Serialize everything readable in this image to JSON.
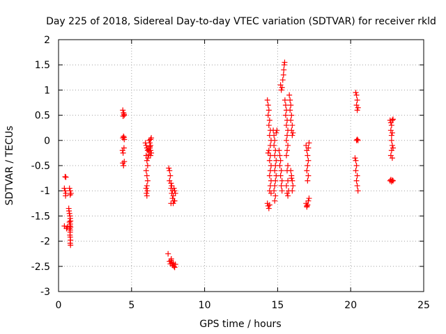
{
  "chart_data": {
    "type": "scatter",
    "title": "Day 225 of 2018, Sidereal Day-to-day VTEC variation (SDTVAR) for receiver rkld",
    "xlabel": "GPS time / hours",
    "ylabel": "SDTVAR / TECUs",
    "xlim": [
      0,
      25
    ],
    "ylim": [
      -3,
      2
    ],
    "x_ticks": [
      0,
      5,
      10,
      15,
      20,
      25
    ],
    "x_tick_labels": [
      "0",
      "5",
      "10",
      "15",
      "20",
      "25"
    ],
    "y_ticks": [
      -3,
      -2.5,
      -2,
      -1.5,
      -1,
      -0.5,
      0,
      0.5,
      1,
      1.5,
      2
    ],
    "y_tick_labels": [
      "-3",
      "-2.5",
      "-2",
      "-1.5",
      "-1",
      "-0.5",
      "0",
      "0.5",
      "1",
      "1.5",
      "2"
    ],
    "grid": true,
    "marker": "+",
    "marker_color": "#ff0000",
    "series": [
      {
        "name": "SDTVAR",
        "points": [
          [
            0.45,
            -0.72
          ],
          [
            0.5,
            -0.73
          ],
          [
            0.4,
            -0.95
          ],
          [
            0.45,
            -1.0
          ],
          [
            0.5,
            -1.05
          ],
          [
            0.48,
            -1.1
          ],
          [
            0.4,
            -1.7
          ],
          [
            0.55,
            -1.75
          ],
          [
            0.6,
            -1.72
          ],
          [
            0.75,
            -0.95
          ],
          [
            0.8,
            -1.0
          ],
          [
            0.85,
            -1.05
          ],
          [
            0.8,
            -1.08
          ],
          [
            0.7,
            -1.35
          ],
          [
            0.72,
            -1.4
          ],
          [
            0.75,
            -1.45
          ],
          [
            0.78,
            -1.5
          ],
          [
            0.8,
            -1.55
          ],
          [
            0.82,
            -1.6
          ],
          [
            0.75,
            -1.62
          ],
          [
            0.8,
            -1.66
          ],
          [
            0.78,
            -1.7
          ],
          [
            0.82,
            -1.72
          ],
          [
            0.76,
            -1.75
          ],
          [
            0.8,
            -1.78
          ],
          [
            0.8,
            -1.82
          ],
          [
            0.78,
            -1.88
          ],
          [
            0.8,
            -1.92
          ],
          [
            0.82,
            -1.98
          ],
          [
            0.8,
            -2.04
          ],
          [
            0.82,
            -2.08
          ],
          [
            4.4,
            0.6
          ],
          [
            4.45,
            0.55
          ],
          [
            4.5,
            0.5
          ],
          [
            4.42,
            0.48
          ],
          [
            4.48,
            0.52
          ],
          [
            4.4,
            0.05
          ],
          [
            4.45,
            0.08
          ],
          [
            4.5,
            0.02
          ],
          [
            4.48,
            0.06
          ],
          [
            4.38,
            -0.2
          ],
          [
            4.42,
            -0.25
          ],
          [
            4.48,
            -0.15
          ],
          [
            4.4,
            -0.45
          ],
          [
            4.45,
            -0.5
          ],
          [
            4.5,
            -0.42
          ],
          [
            5.95,
            -0.05
          ],
          [
            6.0,
            -0.1
          ],
          [
            6.05,
            -0.15
          ],
          [
            6.1,
            -0.2
          ],
          [
            6.0,
            -0.3
          ],
          [
            6.05,
            -0.4
          ],
          [
            6.1,
            -0.5
          ],
          [
            6.0,
            -0.6
          ],
          [
            6.05,
            -0.7
          ],
          [
            6.1,
            -0.8
          ],
          [
            6.05,
            -0.9
          ],
          [
            6.0,
            -0.95
          ],
          [
            6.08,
            -1.0
          ],
          [
            6.02,
            -1.05
          ],
          [
            6.05,
            -1.1
          ],
          [
            6.2,
            0.0
          ],
          [
            6.25,
            -0.05
          ],
          [
            6.3,
            -0.1
          ],
          [
            6.25,
            -0.15
          ],
          [
            6.3,
            -0.2
          ],
          [
            6.35,
            -0.25
          ],
          [
            6.3,
            -0.3
          ],
          [
            6.2,
            -0.22
          ],
          [
            6.15,
            -0.18
          ],
          [
            6.35,
            0.05
          ],
          [
            6.3,
            0.02
          ],
          [
            6.25,
            -0.12
          ],
          [
            6.18,
            -0.28
          ],
          [
            6.12,
            -0.35
          ],
          [
            7.55,
            -0.55
          ],
          [
            7.6,
            -0.6
          ],
          [
            7.65,
            -0.7
          ],
          [
            7.6,
            -0.8
          ],
          [
            7.7,
            -0.85
          ],
          [
            7.75,
            -0.9
          ],
          [
            7.7,
            -0.95
          ],
          [
            7.8,
            -1.0
          ],
          [
            7.75,
            -1.05
          ],
          [
            7.85,
            -1.1
          ],
          [
            7.8,
            -1.15
          ],
          [
            7.9,
            -1.2
          ],
          [
            7.85,
            -1.25
          ],
          [
            7.95,
            -1.0
          ],
          [
            7.9,
            -0.95
          ],
          [
            8.0,
            -1.05
          ],
          [
            7.95,
            -1.2
          ],
          [
            7.7,
            -1.25
          ],
          [
            7.5,
            -2.25
          ],
          [
            7.6,
            -2.4
          ],
          [
            7.65,
            -2.45
          ],
          [
            7.7,
            -2.38
          ],
          [
            7.75,
            -2.42
          ],
          [
            7.8,
            -2.48
          ],
          [
            7.85,
            -2.44
          ],
          [
            7.9,
            -2.5
          ],
          [
            7.95,
            -2.52
          ],
          [
            8.0,
            -2.46
          ],
          [
            7.72,
            -2.35
          ],
          [
            14.3,
            0.8
          ],
          [
            14.35,
            0.7
          ],
          [
            14.4,
            0.6
          ],
          [
            14.35,
            0.5
          ],
          [
            14.45,
            0.4
          ],
          [
            14.4,
            0.3
          ],
          [
            14.5,
            0.2
          ],
          [
            14.45,
            0.1
          ],
          [
            14.55,
            0.0
          ],
          [
            14.5,
            -0.1
          ],
          [
            14.4,
            -0.2
          ],
          [
            14.35,
            -0.25
          ],
          [
            14.5,
            -0.3
          ],
          [
            14.45,
            -0.4
          ],
          [
            14.55,
            -0.5
          ],
          [
            14.5,
            -0.6
          ],
          [
            14.45,
            -0.7
          ],
          [
            14.55,
            -0.8
          ],
          [
            14.5,
            -0.9
          ],
          [
            14.45,
            -1.0
          ],
          [
            14.55,
            -1.05
          ],
          [
            14.3,
            -1.25
          ],
          [
            14.35,
            -1.3
          ],
          [
            14.4,
            -1.35
          ],
          [
            14.45,
            -1.28
          ],
          [
            14.7,
            0.2
          ],
          [
            14.75,
            0.1
          ],
          [
            14.8,
            0.0
          ],
          [
            14.75,
            -0.1
          ],
          [
            14.85,
            -0.2
          ],
          [
            14.8,
            -0.3
          ],
          [
            14.9,
            -0.4
          ],
          [
            14.85,
            -0.5
          ],
          [
            14.8,
            -0.6
          ],
          [
            14.9,
            -0.7
          ],
          [
            14.85,
            -0.8
          ],
          [
            14.8,
            -0.9
          ],
          [
            14.75,
            -1.0
          ],
          [
            14.85,
            -1.1
          ],
          [
            14.8,
            -1.2
          ],
          [
            14.9,
            0.15
          ],
          [
            14.95,
            0.2
          ],
          [
            15.1,
            -0.2
          ],
          [
            15.15,
            -0.3
          ],
          [
            15.2,
            -0.4
          ],
          [
            15.15,
            -0.5
          ],
          [
            15.25,
            -0.6
          ],
          [
            15.2,
            -0.7
          ],
          [
            15.3,
            -0.8
          ],
          [
            15.25,
            -0.9
          ],
          [
            15.3,
            -1.0
          ],
          [
            15.2,
            1.1
          ],
          [
            15.25,
            1.0
          ],
          [
            15.3,
            1.05
          ],
          [
            15.35,
            1.2
          ],
          [
            15.4,
            1.3
          ],
          [
            15.42,
            1.4
          ],
          [
            15.45,
            1.5
          ],
          [
            15.48,
            1.55
          ],
          [
            15.5,
            0.8
          ],
          [
            15.55,
            0.7
          ],
          [
            15.6,
            0.6
          ],
          [
            15.55,
            0.5
          ],
          [
            15.65,
            0.4
          ],
          [
            15.6,
            0.3
          ],
          [
            15.7,
            0.2
          ],
          [
            15.65,
            0.1
          ],
          [
            15.6,
            0.0
          ],
          [
            15.7,
            -0.1
          ],
          [
            15.65,
            -0.2
          ],
          [
            15.6,
            -0.3
          ],
          [
            15.7,
            -0.5
          ],
          [
            15.65,
            -0.6
          ],
          [
            15.7,
            -0.8
          ],
          [
            15.6,
            -0.9
          ],
          [
            15.75,
            -1.0
          ],
          [
            15.7,
            -1.1
          ],
          [
            15.65,
            -1.05
          ],
          [
            15.8,
            0.9
          ],
          [
            15.85,
            0.8
          ],
          [
            15.9,
            0.7
          ],
          [
            15.85,
            0.6
          ],
          [
            15.95,
            0.5
          ],
          [
            15.9,
            0.4
          ],
          [
            16.0,
            0.3
          ],
          [
            15.95,
            0.2
          ],
          [
            16.0,
            0.1
          ],
          [
            16.05,
            0.15
          ],
          [
            15.9,
            -0.6
          ],
          [
            15.95,
            -0.7
          ],
          [
            16.0,
            -0.8
          ],
          [
            16.05,
            -0.9
          ],
          [
            16.0,
            -1.0
          ],
          [
            15.95,
            -0.75
          ],
          [
            16.95,
            -0.1
          ],
          [
            17.0,
            -0.2
          ],
          [
            17.05,
            -0.3
          ],
          [
            17.1,
            -0.4
          ],
          [
            17.05,
            -0.5
          ],
          [
            17.0,
            -0.6
          ],
          [
            17.1,
            -0.7
          ],
          [
            17.05,
            -0.8
          ],
          [
            17.15,
            -0.05
          ],
          [
            17.1,
            -0.15
          ],
          [
            16.95,
            -1.25
          ],
          [
            17.0,
            -1.3
          ],
          [
            17.05,
            -1.28
          ],
          [
            17.1,
            -1.2
          ],
          [
            17.15,
            -1.15
          ],
          [
            17.0,
            -1.32
          ],
          [
            20.3,
            -0.35
          ],
          [
            20.35,
            -0.4
          ],
          [
            20.4,
            -0.5
          ],
          [
            20.35,
            -0.6
          ],
          [
            20.45,
            -0.7
          ],
          [
            20.4,
            -0.8
          ],
          [
            20.45,
            -0.9
          ],
          [
            20.5,
            -1.0
          ],
          [
            20.4,
            0.0
          ],
          [
            20.45,
            0.02
          ],
          [
            20.5,
            0.0
          ],
          [
            20.35,
            0.95
          ],
          [
            20.4,
            0.9
          ],
          [
            20.45,
            0.8
          ],
          [
            20.4,
            0.7
          ],
          [
            20.5,
            0.65
          ],
          [
            20.45,
            0.6
          ],
          [
            22.7,
            0.4
          ],
          [
            22.75,
            0.35
          ],
          [
            22.8,
            0.3
          ],
          [
            22.85,
            0.4
          ],
          [
            22.9,
            0.42
          ],
          [
            22.75,
            0.2
          ],
          [
            22.8,
            0.1
          ],
          [
            22.85,
            0.15
          ],
          [
            22.8,
            0.0
          ],
          [
            22.85,
            -0.1
          ],
          [
            22.8,
            -0.2
          ],
          [
            22.9,
            -0.15
          ],
          [
            22.75,
            -0.3
          ],
          [
            22.85,
            -0.35
          ],
          [
            22.7,
            -0.8
          ],
          [
            22.75,
            -0.78
          ],
          [
            22.8,
            -0.82
          ],
          [
            22.85,
            -0.79
          ],
          [
            22.9,
            -0.8
          ]
        ]
      }
    ]
  }
}
